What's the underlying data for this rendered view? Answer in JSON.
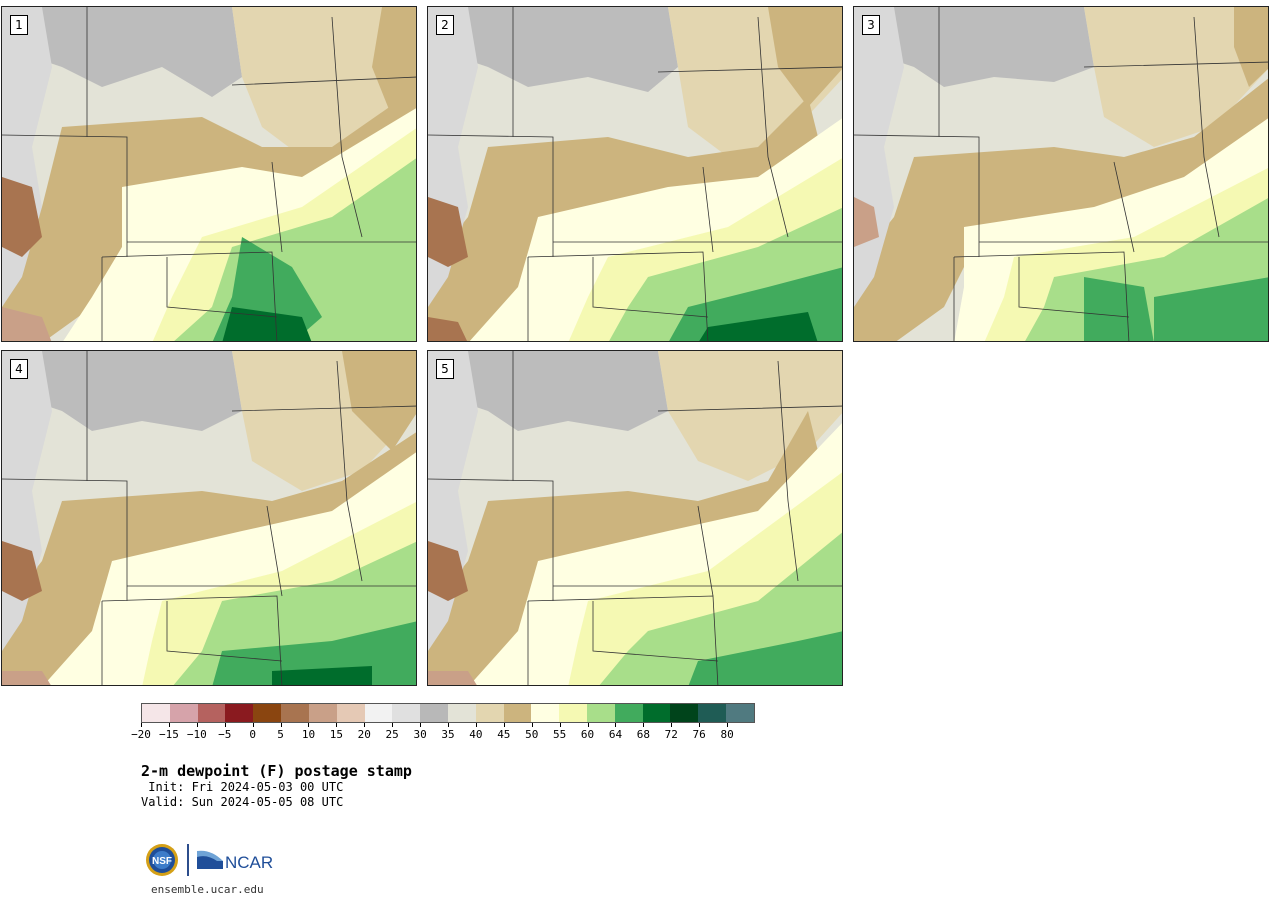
{
  "panels": [
    {
      "label": "1"
    },
    {
      "label": "2"
    },
    {
      "label": "3"
    },
    {
      "label": "4"
    },
    {
      "label": "5"
    }
  ],
  "colorbar": {
    "colors": [
      "#f5e6e8",
      "#d6a3aa",
      "#b5625f",
      "#8a1a1f",
      "#8a4510",
      "#a87450",
      "#c9a088",
      "#e5c9b5",
      "#f2f2f2",
      "#e0e0e0",
      "#b8b8b8",
      "#e3e3d7",
      "#e3d6b0",
      "#ccb47e",
      "#ffffe2",
      "#f5f9b3",
      "#a8de8a",
      "#41ab5d",
      "#006d2c",
      "#00441b",
      "#1f5c55",
      "#507a80"
    ],
    "tick_labels": [
      "−20",
      "−15",
      "−10",
      "−5",
      "0",
      "5",
      "10",
      "15",
      "20",
      "25",
      "30",
      "35",
      "40",
      "45",
      "50",
      "55",
      "60",
      "64",
      "68",
      "72",
      "76",
      "80"
    ]
  },
  "title": "2-m dewpoint (F) postage stamp",
  "init": " Init: Fri 2024-05-03 00 UTC",
  "valid": "Valid: Sun 2024-05-05 08 UTC",
  "logos": {
    "nsf": "NSF",
    "ncar": "NCAR"
  },
  "site": "ensemble.ucar.edu"
}
